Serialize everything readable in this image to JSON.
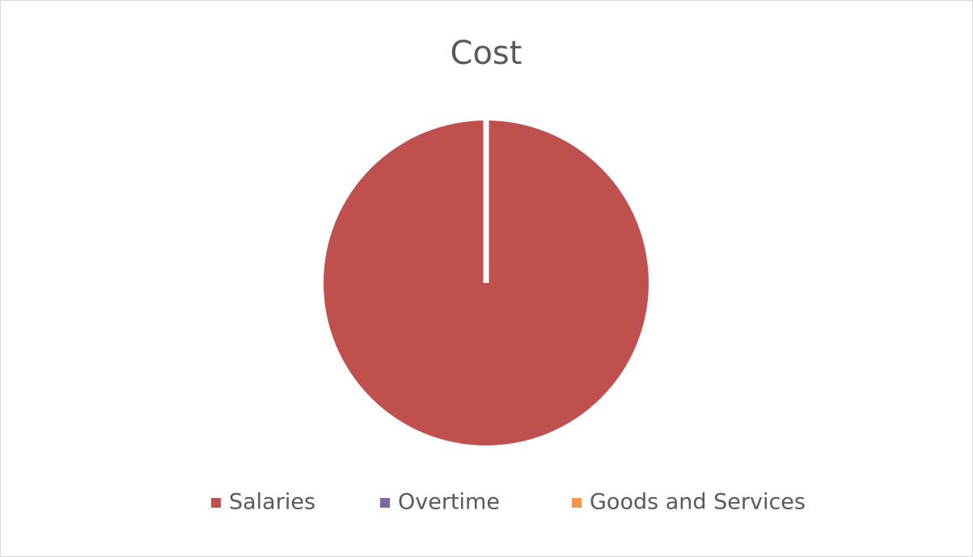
{
  "chart_data": {
    "type": "pie",
    "title": "Cost",
    "categories": [
      "Salaries",
      "Overtime",
      "Goods and Services"
    ],
    "values": [
      100,
      0,
      0
    ],
    "colors": [
      "#c0504d",
      "#8064a2",
      "#f79646"
    ],
    "legend": "bottom"
  }
}
